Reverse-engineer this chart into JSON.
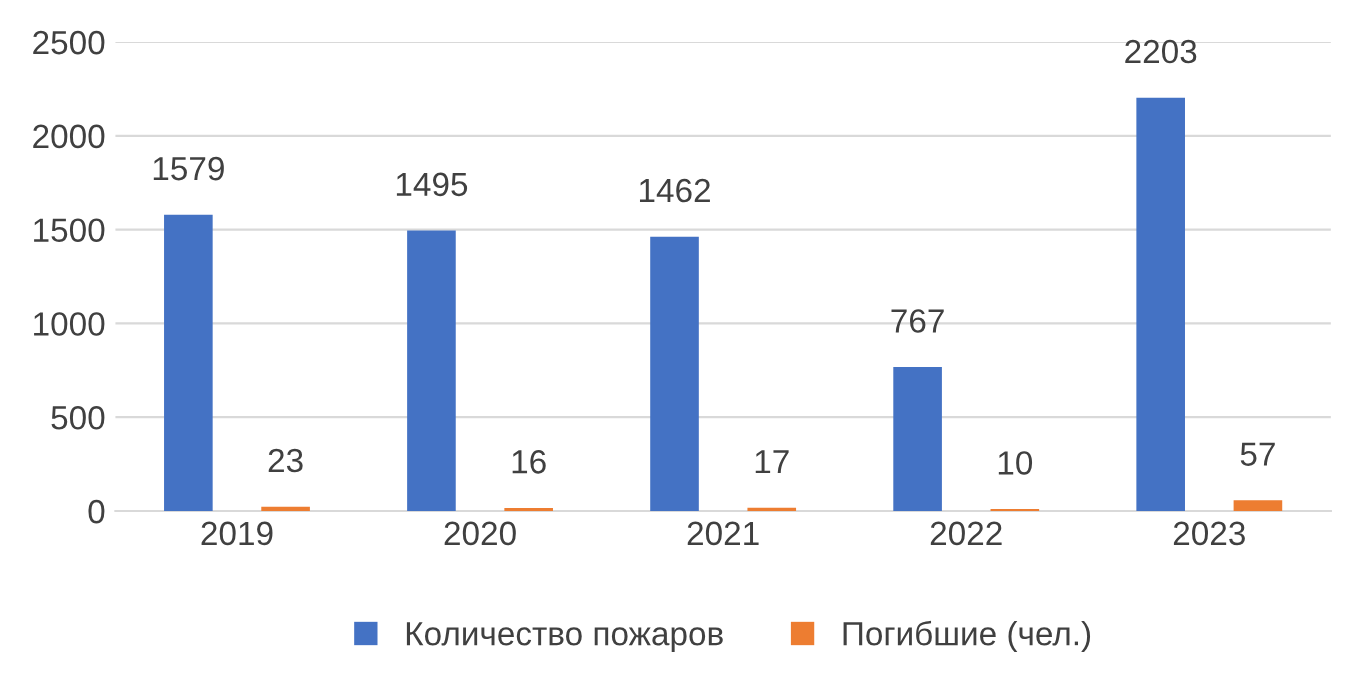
{
  "chart_data": {
    "type": "bar",
    "categories": [
      "2019",
      "2020",
      "2021",
      "2022",
      "2023"
    ],
    "series": [
      {
        "name": "Количество пожаров",
        "color": "#4472c4",
        "values": [
          1579,
          1495,
          1462,
          767,
          2203
        ]
      },
      {
        "name": "Погибшие (чел.)",
        "color": "#ed7d31",
        "values": [
          23,
          16,
          17,
          10,
          57
        ]
      }
    ],
    "ylim": [
      0,
      2500
    ],
    "yticks": [
      0,
      500,
      1000,
      1500,
      2000,
      2500
    ],
    "grid": "y",
    "legend": "bottom",
    "data_labels": true
  }
}
